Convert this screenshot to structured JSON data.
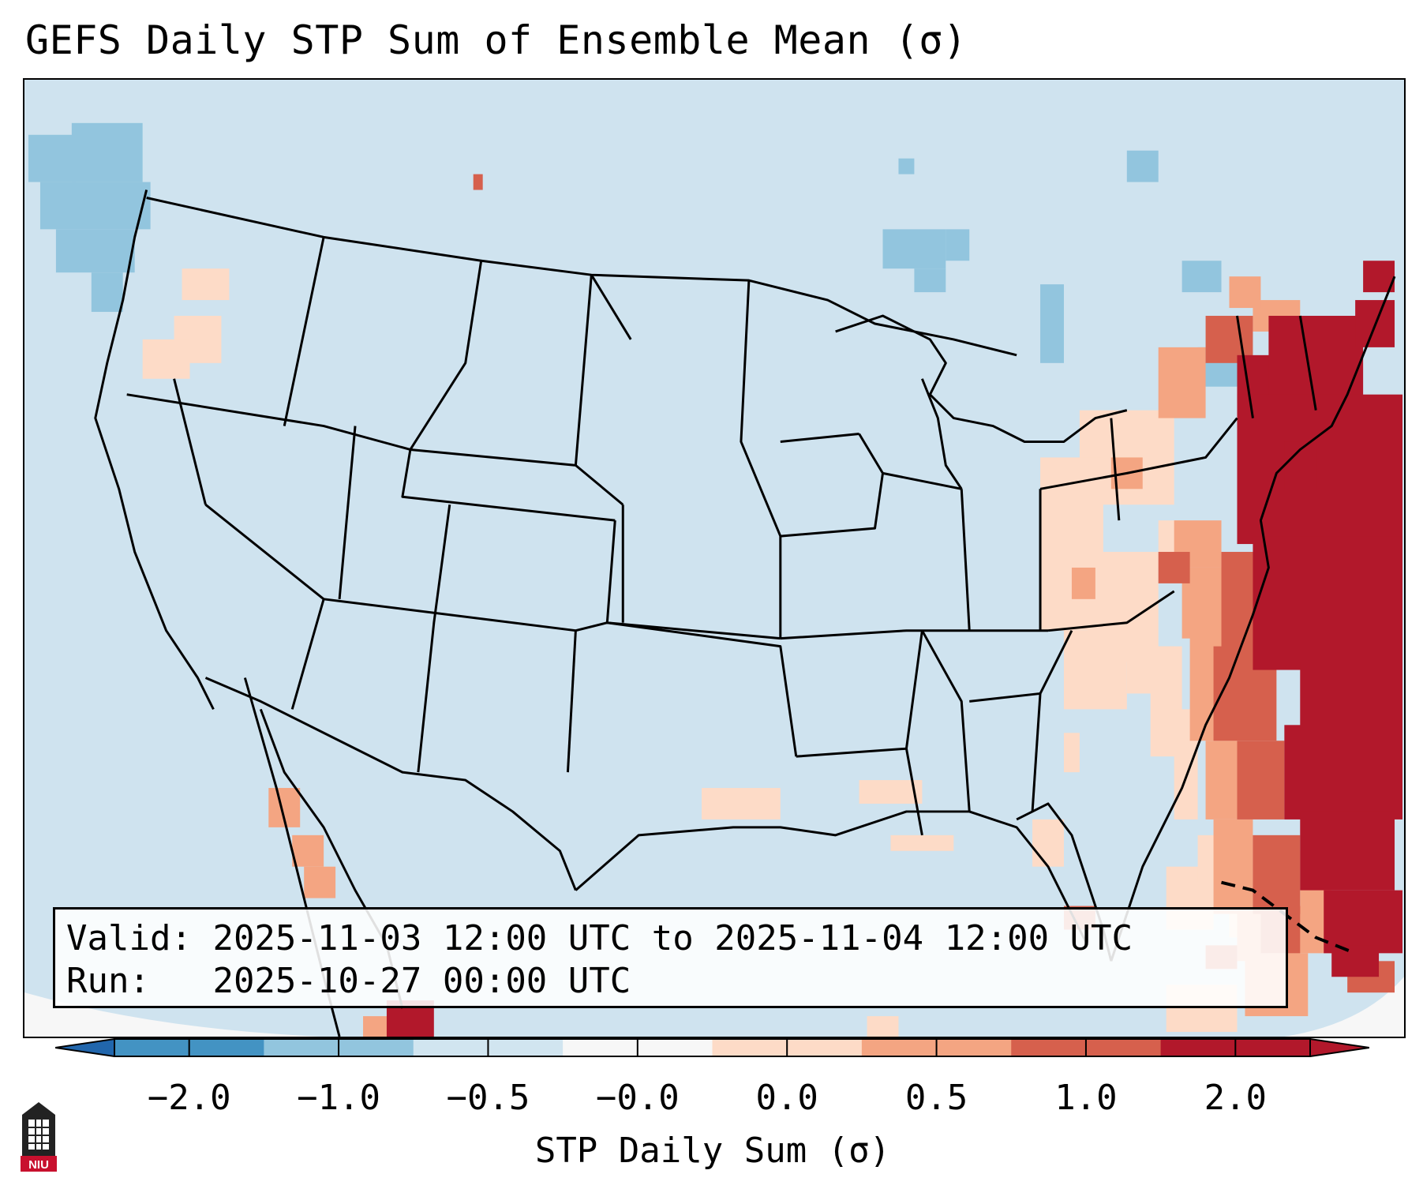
{
  "title": "GEFS Daily STP Sum of Ensemble Mean (σ)",
  "info": {
    "valid_label": "Valid:",
    "valid_value": "2025-11-03 12:00 UTC to 2025-11-04 12:00 UTC",
    "run_label": "Run:",
    "run_value": "2025-10-27 00:00 UTC"
  },
  "colorbar": {
    "label": "STP Daily Sum (σ)",
    "ticks": [
      "−2.0",
      "−1.0",
      "−0.5",
      "−0.0",
      "0.0",
      "0.5",
      "1.0",
      "2.0"
    ],
    "colors": [
      "#4393c3",
      "#92c5de",
      "#d1e5f0",
      "#f7f7f7",
      "#fddbc7",
      "#f4a582",
      "#d6604d",
      "#b2182b"
    ],
    "under_color": "#2166ac",
    "over_color": "#b2182b"
  },
  "map": {
    "background_color": "#cfe3ef",
    "outside_projection_color": "#f7f7f7",
    "high_anomaly_region": "US East Coast and western Atlantic"
  },
  "logo": {
    "text": "NIU"
  }
}
